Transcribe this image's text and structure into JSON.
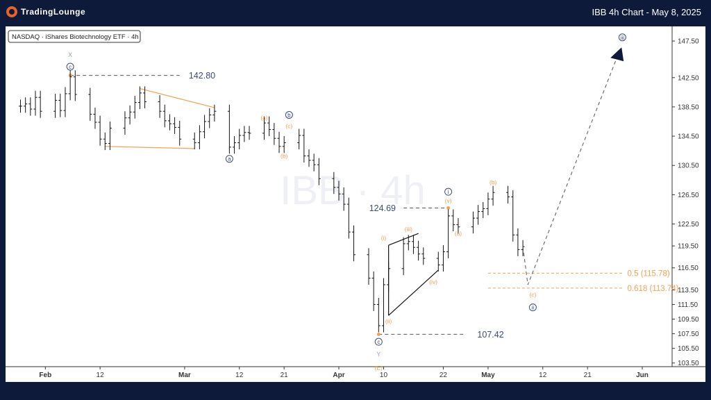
{
  "header": {
    "brand": "TradingLounge",
    "title": "IBB 4h Chart - May 8, 2025"
  },
  "symbol_label": "NASDAQ · iShares Biotechnology ETF · 4h",
  "watermark": "IBB · 4h",
  "colors": {
    "background": "#0e1a3a",
    "accent": "#e8632b",
    "orange": "#f0a050",
    "wave_blue": "#3b4a7a",
    "label_gray": "#9aa0b0",
    "bar": "#111111"
  },
  "chart_data": {
    "type": "bar",
    "title": "IBB 4h Chart - May 8, 2025",
    "xlabel": "",
    "ylabel": "",
    "ylim": [
      103.0,
      149.5
    ],
    "y_ticks": [
      147.5,
      142.5,
      138.5,
      134.5,
      130.5,
      126.5,
      122.5,
      119.5,
      116.5,
      113.5,
      111.5,
      109.5,
      107.5,
      105.5,
      103.5
    ],
    "x_ticks": [
      {
        "label": "Feb",
        "date": "2025-02-01"
      },
      {
        "label": "12",
        "date": "2025-02-12"
      },
      {
        "label": "Mar",
        "date": "2025-03-01"
      },
      {
        "label": "12",
        "date": "2025-03-12"
      },
      {
        "label": "21",
        "date": "2025-03-21"
      },
      {
        "label": "Apr",
        "date": "2025-04-01"
      },
      {
        "label": "10",
        "date": "2025-04-10"
      },
      {
        "label": "22",
        "date": "2025-04-22"
      },
      {
        "label": "May",
        "date": "2025-05-01"
      },
      {
        "label": "12",
        "date": "2025-05-12"
      },
      {
        "label": "21",
        "date": "2025-05-21"
      },
      {
        "label": "Jun",
        "date": "2025-06-01"
      }
    ],
    "price_levels": [
      {
        "label": "142.80",
        "value": 142.8
      },
      {
        "label": "124.69",
        "value": 124.69
      },
      {
        "label": "107.42",
        "value": 107.42
      }
    ],
    "fib_levels": [
      {
        "label": "0.5 (115.78)",
        "value": 115.78
      },
      {
        "label": "0.618 (113.74)",
        "value": 113.74
      }
    ],
    "projection": {
      "from": {
        "date": "2025-05-09",
        "value": 114.2
      },
      "to": {
        "date": "2025-05-27",
        "value": 145.4
      }
    },
    "wave_labels": [
      {
        "text": "X",
        "date": "2025-02-06",
        "value": 145.6,
        "style": "plain"
      },
      {
        "text": "c",
        "date": "2025-02-06",
        "value": 144.0,
        "style": "circle"
      },
      {
        "text": "a",
        "date": "2025-03-10",
        "value": 131.4,
        "style": "circle"
      },
      {
        "text": "b",
        "date": "2025-03-22",
        "value": 137.4,
        "style": "circle"
      },
      {
        "text": "(a)",
        "date": "2025-03-17",
        "value": 137.0,
        "style": "orange"
      },
      {
        "text": "(c)",
        "date": "2025-03-22",
        "value": 135.9,
        "style": "orange"
      },
      {
        "text": "(b)",
        "date": "2025-03-21",
        "value": 131.8,
        "style": "orange"
      },
      {
        "text": "i",
        "date": "2025-04-23",
        "value": 126.9,
        "style": "circle"
      },
      {
        "text": "(v)",
        "date": "2025-04-23",
        "value": 125.7,
        "style": "orange"
      },
      {
        "text": "(b)",
        "date": "2025-05-02",
        "value": 128.2,
        "style": "orange"
      },
      {
        "text": "(a)",
        "date": "2025-04-25",
        "value": 121.2,
        "style": "orange"
      },
      {
        "text": "(i)",
        "date": "2025-04-10",
        "value": 120.6,
        "style": "orange"
      },
      {
        "text": "(iii)",
        "date": "2025-04-15",
        "value": 121.8,
        "style": "orange"
      },
      {
        "text": "(iv)",
        "date": "2025-04-20",
        "value": 114.6,
        "style": "orange"
      },
      {
        "text": "(ii)",
        "date": "2025-04-11",
        "value": 109.2,
        "style": "orange"
      },
      {
        "text": "c",
        "date": "2025-04-09",
        "value": 106.4,
        "style": "circle"
      },
      {
        "text": "Y",
        "date": "2025-04-09",
        "value": 104.7,
        "style": "plain"
      },
      {
        "text": "(E)",
        "date": "2025-04-09",
        "value": 102.8,
        "style": "orange"
      },
      {
        "text": "(c)",
        "date": "2025-05-10",
        "value": 112.8,
        "style": "orange"
      },
      {
        "text": "ii",
        "date": "2025-05-10",
        "value": 111.1,
        "style": "circle"
      },
      {
        "text": "iii",
        "date": "2025-05-28",
        "value": 148.0,
        "style": "circle"
      }
    ],
    "triangle": [
      {
        "date": "2025-02-13",
        "value": 133.1
      },
      {
        "date": "2025-02-20",
        "value": 141.0
      },
      {
        "date": "2025-03-07",
        "value": 138.4
      },
      {
        "date": "2025-03-03",
        "value": 132.8
      }
    ],
    "wedge": [
      {
        "date": "2025-04-11",
        "value": 119.6
      },
      {
        "date": "2025-04-17",
        "value": 121.2
      },
      {
        "date": "2025-04-21",
        "value": 116.2
      },
      {
        "date": "2025-04-11",
        "value": 110.0
      }
    ],
    "series": [
      {
        "values": [
          {
            "date": "2025-01-27",
            "value": 138.6
          },
          {
            "date": "2025-01-28",
            "value": 138.9
          },
          {
            "date": "2025-01-29",
            "value": 138.2
          },
          {
            "date": "2025-01-30",
            "value": 139.8
          },
          {
            "date": "2025-01-31",
            "value": 137.9
          },
          {
            "date": "2025-02-03",
            "value": 139.4
          },
          {
            "date": "2025-02-04",
            "value": 138.0
          },
          {
            "date": "2025-02-05",
            "value": 140.3
          },
          {
            "date": "2025-02-06",
            "value": 142.6
          },
          {
            "date": "2025-02-07",
            "value": 140.2
          },
          {
            "date": "2025-02-10",
            "value": 137.5
          },
          {
            "date": "2025-02-11",
            "value": 136.4
          },
          {
            "date": "2025-02-12",
            "value": 134.1
          },
          {
            "date": "2025-02-13",
            "value": 133.5
          },
          {
            "date": "2025-02-14",
            "value": 135.6
          },
          {
            "date": "2025-02-17",
            "value": 137.0
          },
          {
            "date": "2025-02-18",
            "value": 137.8
          },
          {
            "date": "2025-02-19",
            "value": 139.1
          },
          {
            "date": "2025-02-20",
            "value": 140.4
          },
          {
            "date": "2025-02-21",
            "value": 139.2
          },
          {
            "date": "2025-02-24",
            "value": 137.9
          },
          {
            "date": "2025-02-25",
            "value": 136.6
          },
          {
            "date": "2025-02-26",
            "value": 136.2
          },
          {
            "date": "2025-02-27",
            "value": 135.7
          },
          {
            "date": "2025-02-28",
            "value": 134.1
          },
          {
            "date": "2025-03-03",
            "value": 133.6
          },
          {
            "date": "2025-03-04",
            "value": 135.1
          },
          {
            "date": "2025-03-05",
            "value": 136.5
          },
          {
            "date": "2025-03-06",
            "value": 137.4
          },
          {
            "date": "2025-03-07",
            "value": 137.9
          },
          {
            "date": "2025-03-10",
            "value": 133.0
          },
          {
            "date": "2025-03-11",
            "value": 133.6
          },
          {
            "date": "2025-03-12",
            "value": 134.6
          },
          {
            "date": "2025-03-13",
            "value": 135.0
          },
          {
            "date": "2025-03-14",
            "value": 134.9
          },
          {
            "date": "2025-03-17",
            "value": 136.3
          },
          {
            "date": "2025-03-18",
            "value": 135.4
          },
          {
            "date": "2025-03-19",
            "value": 134.2
          },
          {
            "date": "2025-03-20",
            "value": 133.1
          },
          {
            "date": "2025-03-21",
            "value": 133.6
          },
          {
            "date": "2025-03-24",
            "value": 134.6
          },
          {
            "date": "2025-03-25",
            "value": 131.8
          },
          {
            "date": "2025-03-26",
            "value": 131.2
          },
          {
            "date": "2025-03-27",
            "value": 130.6
          },
          {
            "date": "2025-03-28",
            "value": 128.7
          },
          {
            "date": "2025-03-31",
            "value": 127.5
          },
          {
            "date": "2025-04-01",
            "value": 126.6
          },
          {
            "date": "2025-04-02",
            "value": 125.2
          },
          {
            "date": "2025-04-03",
            "value": 121.4
          },
          {
            "date": "2025-04-04",
            "value": 118.3
          },
          {
            "date": "2025-04-07",
            "value": 115.1
          },
          {
            "date": "2025-04-08",
            "value": 111.5
          },
          {
            "date": "2025-04-09",
            "value": 108.6
          },
          {
            "date": "2025-04-10",
            "value": 114.2
          },
          {
            "date": "2025-04-11",
            "value": 116.4
          },
          {
            "date": "2025-04-14",
            "value": 119.8
          },
          {
            "date": "2025-04-15",
            "value": 120.1
          },
          {
            "date": "2025-04-16",
            "value": 119.3
          },
          {
            "date": "2025-04-17",
            "value": 118.4
          },
          {
            "date": "2025-04-18",
            "value": 117.8
          },
          {
            "date": "2025-04-21",
            "value": 116.9
          },
          {
            "date": "2025-04-22",
            "value": 118.7
          },
          {
            "date": "2025-04-23",
            "value": 123.6
          },
          {
            "date": "2025-04-24",
            "value": 122.4
          },
          {
            "date": "2025-04-25",
            "value": 122.1
          },
          {
            "date": "2025-04-28",
            "value": 123.3
          },
          {
            "date": "2025-04-29",
            "value": 124.2
          },
          {
            "date": "2025-04-30",
            "value": 124.6
          },
          {
            "date": "2025-05-01",
            "value": 125.9
          },
          {
            "date": "2025-05-02",
            "value": 126.8
          },
          {
            "date": "2025-05-05",
            "value": 126.2
          },
          {
            "date": "2025-05-06",
            "value": 121.0
          },
          {
            "date": "2025-05-07",
            "value": 119.0
          },
          {
            "date": "2025-05-08",
            "value": 119.4
          }
        ]
      }
    ]
  }
}
